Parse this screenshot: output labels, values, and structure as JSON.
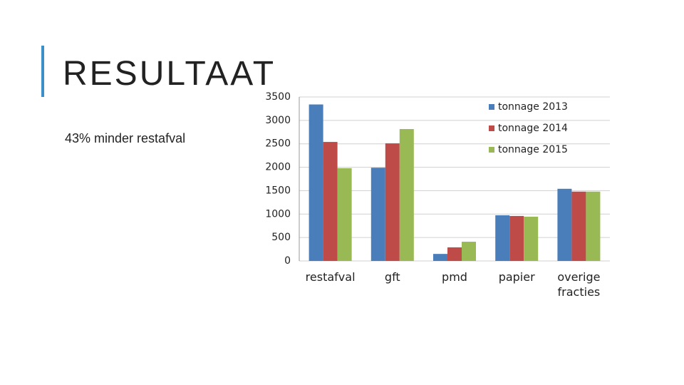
{
  "slide": {
    "title": "RESULTAAT",
    "text": "43% minder restafval"
  },
  "chart_data": {
    "type": "bar",
    "categories": [
      "restafval",
      "gft",
      "pmd",
      "papier",
      "overige fracties"
    ],
    "series": [
      {
        "name": "tonnage 2013",
        "color": "#4a7ebb",
        "values": [
          3340,
          1990,
          150,
          975,
          1540
        ]
      },
      {
        "name": "tonnage 2014",
        "color": "#be4b48",
        "values": [
          2540,
          2510,
          290,
          960,
          1480
        ]
      },
      {
        "name": "tonnage 2015",
        "color": "#98b954",
        "values": [
          1980,
          2815,
          410,
          945,
          1480
        ]
      }
    ],
    "ylim": [
      0,
      3500
    ],
    "yticks": [
      0,
      500,
      1000,
      1500,
      2000,
      2500,
      3000,
      3500
    ],
    "grid": true,
    "legend": "upper right"
  }
}
